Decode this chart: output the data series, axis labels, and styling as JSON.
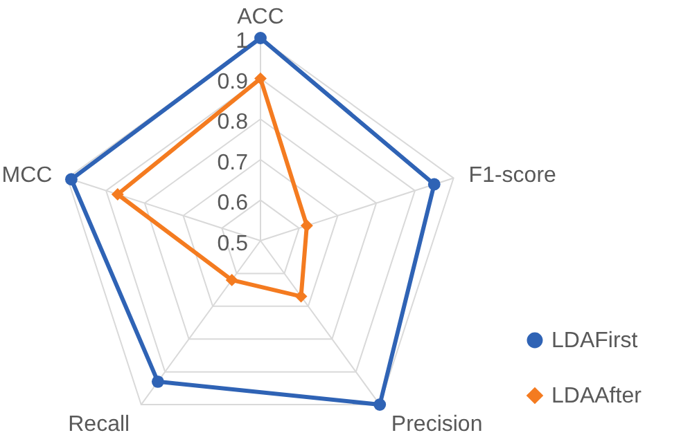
{
  "chart_data": {
    "type": "radar",
    "categories": [
      "ACC",
      "F1-score",
      "Precision",
      "Recall",
      "MCC"
    ],
    "series": [
      {
        "name": "LDAFirst",
        "color": "#2f63b5",
        "marker": "circle",
        "values": [
          1.0,
          0.95,
          1.0,
          0.93,
          0.99
        ]
      },
      {
        "name": "LDAAfter",
        "color": "#f47b20",
        "marker": "diamond",
        "values": [
          0.9,
          0.62,
          0.67,
          0.62,
          0.87
        ]
      }
    ],
    "ylim": [
      0.5,
      1
    ],
    "yticks": [
      0.5,
      0.6,
      0.7,
      0.8,
      0.9,
      1
    ],
    "grid": true,
    "legend": "bottom right"
  }
}
